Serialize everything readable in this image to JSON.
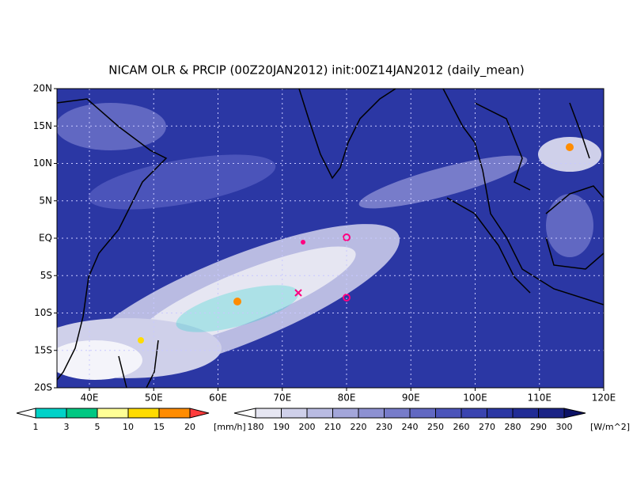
{
  "title": "NICAM OLR & PRCIP (00Z20JAN2012) init:00Z14JAN2012 (daily_mean)",
  "map": {
    "lat_labels": [
      "20N",
      "15N",
      "10N",
      "5N",
      "EQ",
      "5S",
      "10S",
      "15S",
      "20S"
    ],
    "lon_labels": [
      "40E",
      "50E",
      "60E",
      "70E",
      "80E",
      "90E",
      "100E",
      "110E",
      "120E"
    ]
  },
  "precip_colorbar": {
    "labels": [
      "1",
      "3",
      "5",
      "10",
      "15",
      "20"
    ],
    "unit": "[mm/h]",
    "colors": [
      "#ffffff",
      "#00d2c8",
      "#00c882",
      "#ffff96",
      "#ffdc00",
      "#ff8c00",
      "#ff3c3c"
    ]
  },
  "olr_colorbar": {
    "labels": [
      "180",
      "190",
      "200",
      "210",
      "220",
      "230",
      "240",
      "250",
      "260",
      "270",
      "280",
      "290",
      "300"
    ],
    "unit": "[W/m^2]",
    "colors": [
      "#ffffff",
      "#e6e6f2",
      "#cfd0ea",
      "#b9bbe2",
      "#a3a6da",
      "#8d91d2",
      "#777cca",
      "#6168c2",
      "#4b54ba",
      "#3a44b0",
      "#2b37a4",
      "#212c96",
      "#1a2386",
      "#121a76",
      "#0c1266"
    ]
  }
}
